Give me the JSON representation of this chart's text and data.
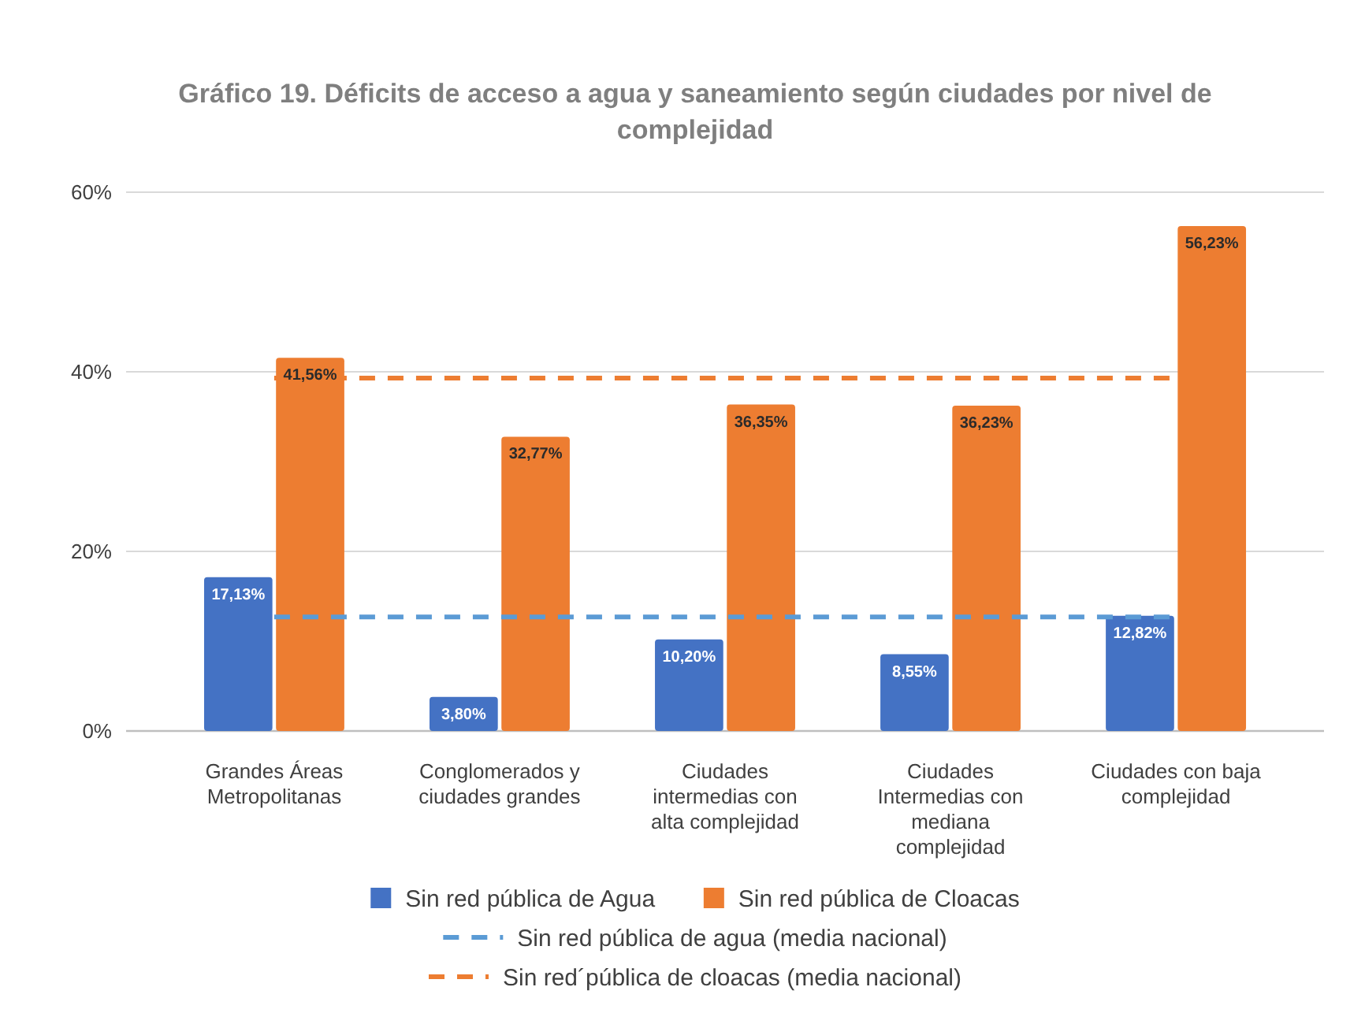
{
  "chart_data": {
    "type": "bar",
    "title": "Gráfico 19. Déficits de acceso a agua y saneamiento según ciudades por nivel de complejidad",
    "categories": [
      "Grandes Áreas Metropolitanas",
      "Conglomerados y ciudades grandes",
      "Ciudades intermedias con alta complejidad",
      "Ciudades Intermedias con mediana complejidad",
      "Ciudades con baja complejidad"
    ],
    "series": [
      {
        "name": "Sin red pública de Agua",
        "color": "#4472c4",
        "values": [
          17.13,
          3.8,
          10.2,
          8.55,
          12.82
        ],
        "value_labels": [
          "17,13%",
          "3,80%",
          "10,20%",
          "8,55%",
          "12,82%"
        ]
      },
      {
        "name": "Sin red pública de Cloacas",
        "color": "#ed7d31",
        "values": [
          41.56,
          32.77,
          36.35,
          36.23,
          56.23
        ],
        "value_labels": [
          "41,56%",
          "32,77%",
          "36,35%",
          "36,23%",
          "56,23%"
        ]
      },
      {
        "name": "Sin red pública de agua (media nacional)",
        "type": "line",
        "color": "#5b9bd5",
        "line_style": "dashed",
        "values": [
          12.7,
          12.7,
          12.7,
          12.7,
          12.7
        ]
      },
      {
        "name": "Sin red´pública de cloacas (media nacional)",
        "type": "line",
        "color": "#ed7d31",
        "line_style": "dashed",
        "values": [
          39.3,
          39.3,
          39.3,
          39.3,
          39.3
        ]
      }
    ],
    "ylim": [
      0,
      60
    ],
    "yticks": [
      {
        "value": 0,
        "label": "0%"
      },
      {
        "value": 20,
        "label": "20%"
      },
      {
        "value": 40,
        "label": "40%"
      },
      {
        "value": 60,
        "label": "60%"
      }
    ],
    "grid": "y",
    "legend": "bottom"
  }
}
